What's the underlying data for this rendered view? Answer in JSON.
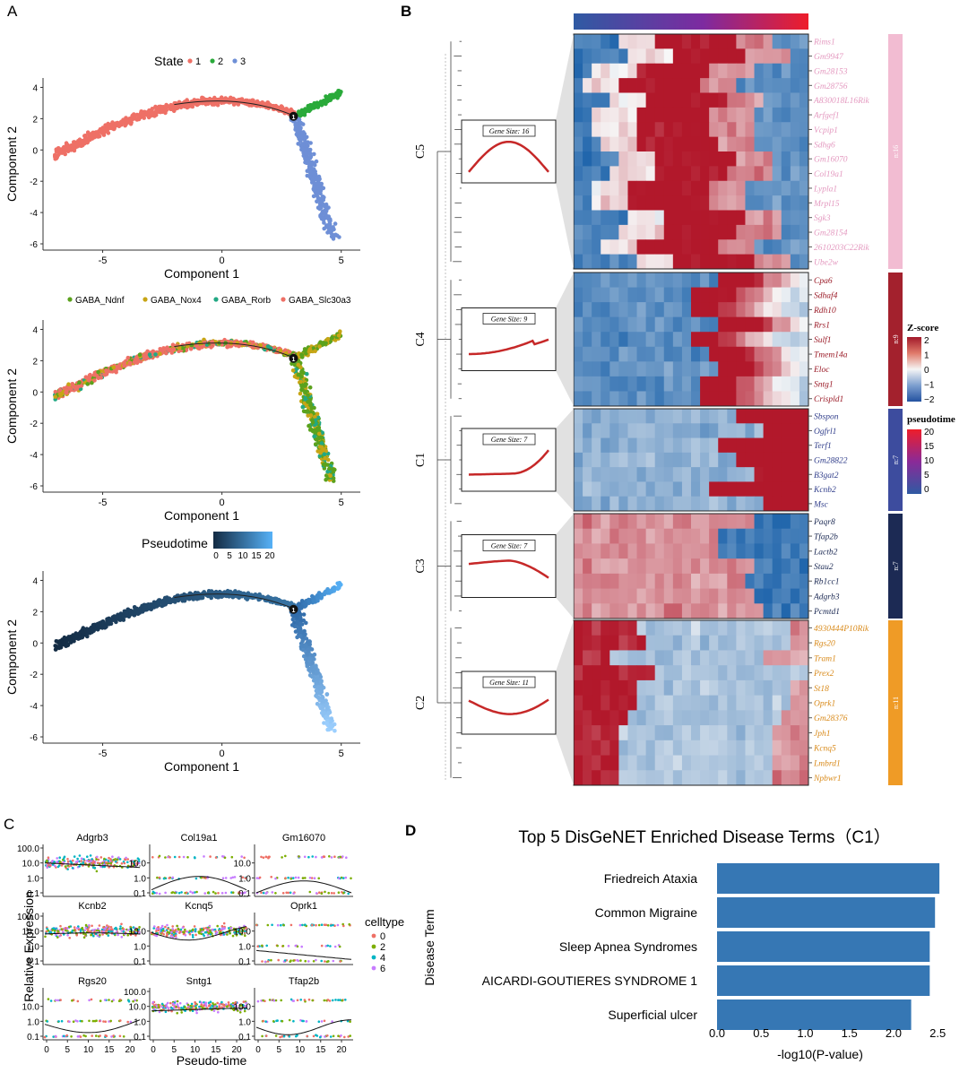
{
  "panels": {
    "a": "A",
    "b": "B",
    "c": "C",
    "d": "D"
  },
  "trajectory": {
    "state_legend": {
      "title": "State",
      "labels": [
        "1",
        "2",
        "3"
      ],
      "colors": [
        "#ee7066",
        "#2aaa3a",
        "#6e8fd6"
      ]
    },
    "celltype_legend": {
      "labels": [
        "GABA_Ndnf",
        "GABA_Nox4",
        "GABA_Rorb",
        "GABA_Slc30a3"
      ],
      "colors": [
        "#5ba21d",
        "#c7a515",
        "#22a884",
        "#ee7066"
      ]
    },
    "pseudotime_legend": {
      "title": "Pseudotime",
      "ticks": [
        "0",
        "5",
        "10",
        "15",
        "20"
      ]
    },
    "branch_label": "1",
    "xlabel": "Component 1",
    "ylabel": "Component 2",
    "xticks": [
      "-5",
      "0",
      "5"
    ],
    "yticks_top": [
      "4",
      "2",
      "0",
      "-2",
      "-4",
      "-6"
    ],
    "yticks_mid": [
      "4",
      "2",
      "0",
      "-2",
      "-4",
      "-6"
    ],
    "yticks_bot": [
      "4",
      "2",
      "0",
      "-2",
      "-4",
      "-6"
    ]
  },
  "heatmap": {
    "clusters": [
      {
        "name": "C5",
        "gene_size_label": "Gene Size: 16",
        "count_label": "n:16",
        "color": "#f2bcd2",
        "text_color": "#e49ac0",
        "genes": [
          "Rims1",
          "Gm9947",
          "Gm28153",
          "Gm28756",
          "A830018L16Rik",
          "Arfgef1",
          "Vcpip1",
          "Sdhg6",
          "Gm16070",
          "Col19a1",
          "Lypla1",
          "Mrpl15",
          "Sgk3",
          "Gm28154",
          "2610203C22Rik",
          "Ube2w"
        ]
      },
      {
        "name": "C4",
        "gene_size_label": "Gene Size: 9",
        "count_label": "n:9",
        "color": "#a3212d",
        "text_color": "#9b1c28",
        "genes": [
          "Cpa6",
          "Sdhaf4",
          "Rdh10",
          "Rrs1",
          "Sulf1",
          "Tmem14a",
          "Eloc",
          "Sntg1",
          "Crispld1"
        ]
      },
      {
        "name": "C1",
        "gene_size_label": "Gene Size: 7",
        "count_label": "n:7",
        "color": "#3d4c9e",
        "text_color": "#33408c",
        "genes": [
          "Sbspon",
          "Ogfrl1",
          "Terf1",
          "Gm28822",
          "B3gat2",
          "Kcnb2",
          "Msc"
        ]
      },
      {
        "name": "C3",
        "gene_size_label": "Gene Size: 7",
        "count_label": "n:7",
        "color": "#1c2a54",
        "text_color": "#1c2a54",
        "genes": [
          "Paqr8",
          "Tfap2b",
          "Lactb2",
          "Stau2",
          "Rb1cc1",
          "Adgrb3",
          "Pcmtd1"
        ]
      },
      {
        "name": "C2",
        "gene_size_label": "Gene Size: 11",
        "count_label": "n:11",
        "color": "#ef9b26",
        "text_color": "#d98b1c",
        "genes": [
          "4930444P10Rik",
          "Rgs20",
          "Tram1",
          "Prex2",
          "St18",
          "Oprk1",
          "Gm28376",
          "Jph1",
          "Kcnq5",
          "Lmbrd1",
          "Npbwr1"
        ]
      }
    ],
    "zscore_legend": {
      "title": "Z-score",
      "ticks": [
        "2",
        "1",
        "0",
        "−1",
        "−2"
      ]
    },
    "pseudotime_legend": {
      "title": "pseudotime",
      "ticks": [
        "20",
        "15",
        "10",
        "5",
        "0"
      ]
    }
  },
  "expression": {
    "genes": [
      "Adgrb3",
      "Col19a1",
      "Gm16070",
      "Kcnb2",
      "Kcnq5",
      "Oprk1",
      "Rgs20",
      "Sntg1",
      "Tfap2b"
    ],
    "yticks": [
      "100.0",
      "10.0",
      "1.0",
      "0.1"
    ],
    "xticks": [
      "0",
      "5",
      "10",
      "15",
      "20"
    ],
    "ylabel": "Relative Expression",
    "xlabel": "Pseudo-time",
    "legend_title": "celltype",
    "legend_labels": [
      "0",
      "2",
      "4",
      "6"
    ],
    "legend_colors": [
      "#ee7066",
      "#7cae00",
      "#00b4c4",
      "#c77cff"
    ]
  },
  "chart_data": {
    "type": "bar",
    "orientation": "horizontal",
    "title": "Top 5 DisGeNET Enriched Disease Terms（C1）",
    "categories": [
      "Friedreich Ataxia",
      "Common Migraine",
      "Sleep Apnea Syndromes",
      "AICARDI-GOUTIERES SYNDROME 1",
      "Superficial ulcer"
    ],
    "values": [
      2.52,
      2.47,
      2.41,
      2.41,
      2.2
    ],
    "xlabel": "-log10(P-value)",
    "ylabel": "Disease Term",
    "xlim": [
      0,
      2.6
    ],
    "xticks": [
      "0.0",
      "0.5",
      "1.0",
      "1.5",
      "2.0",
      "2.5"
    ],
    "color": "#3677b4"
  }
}
